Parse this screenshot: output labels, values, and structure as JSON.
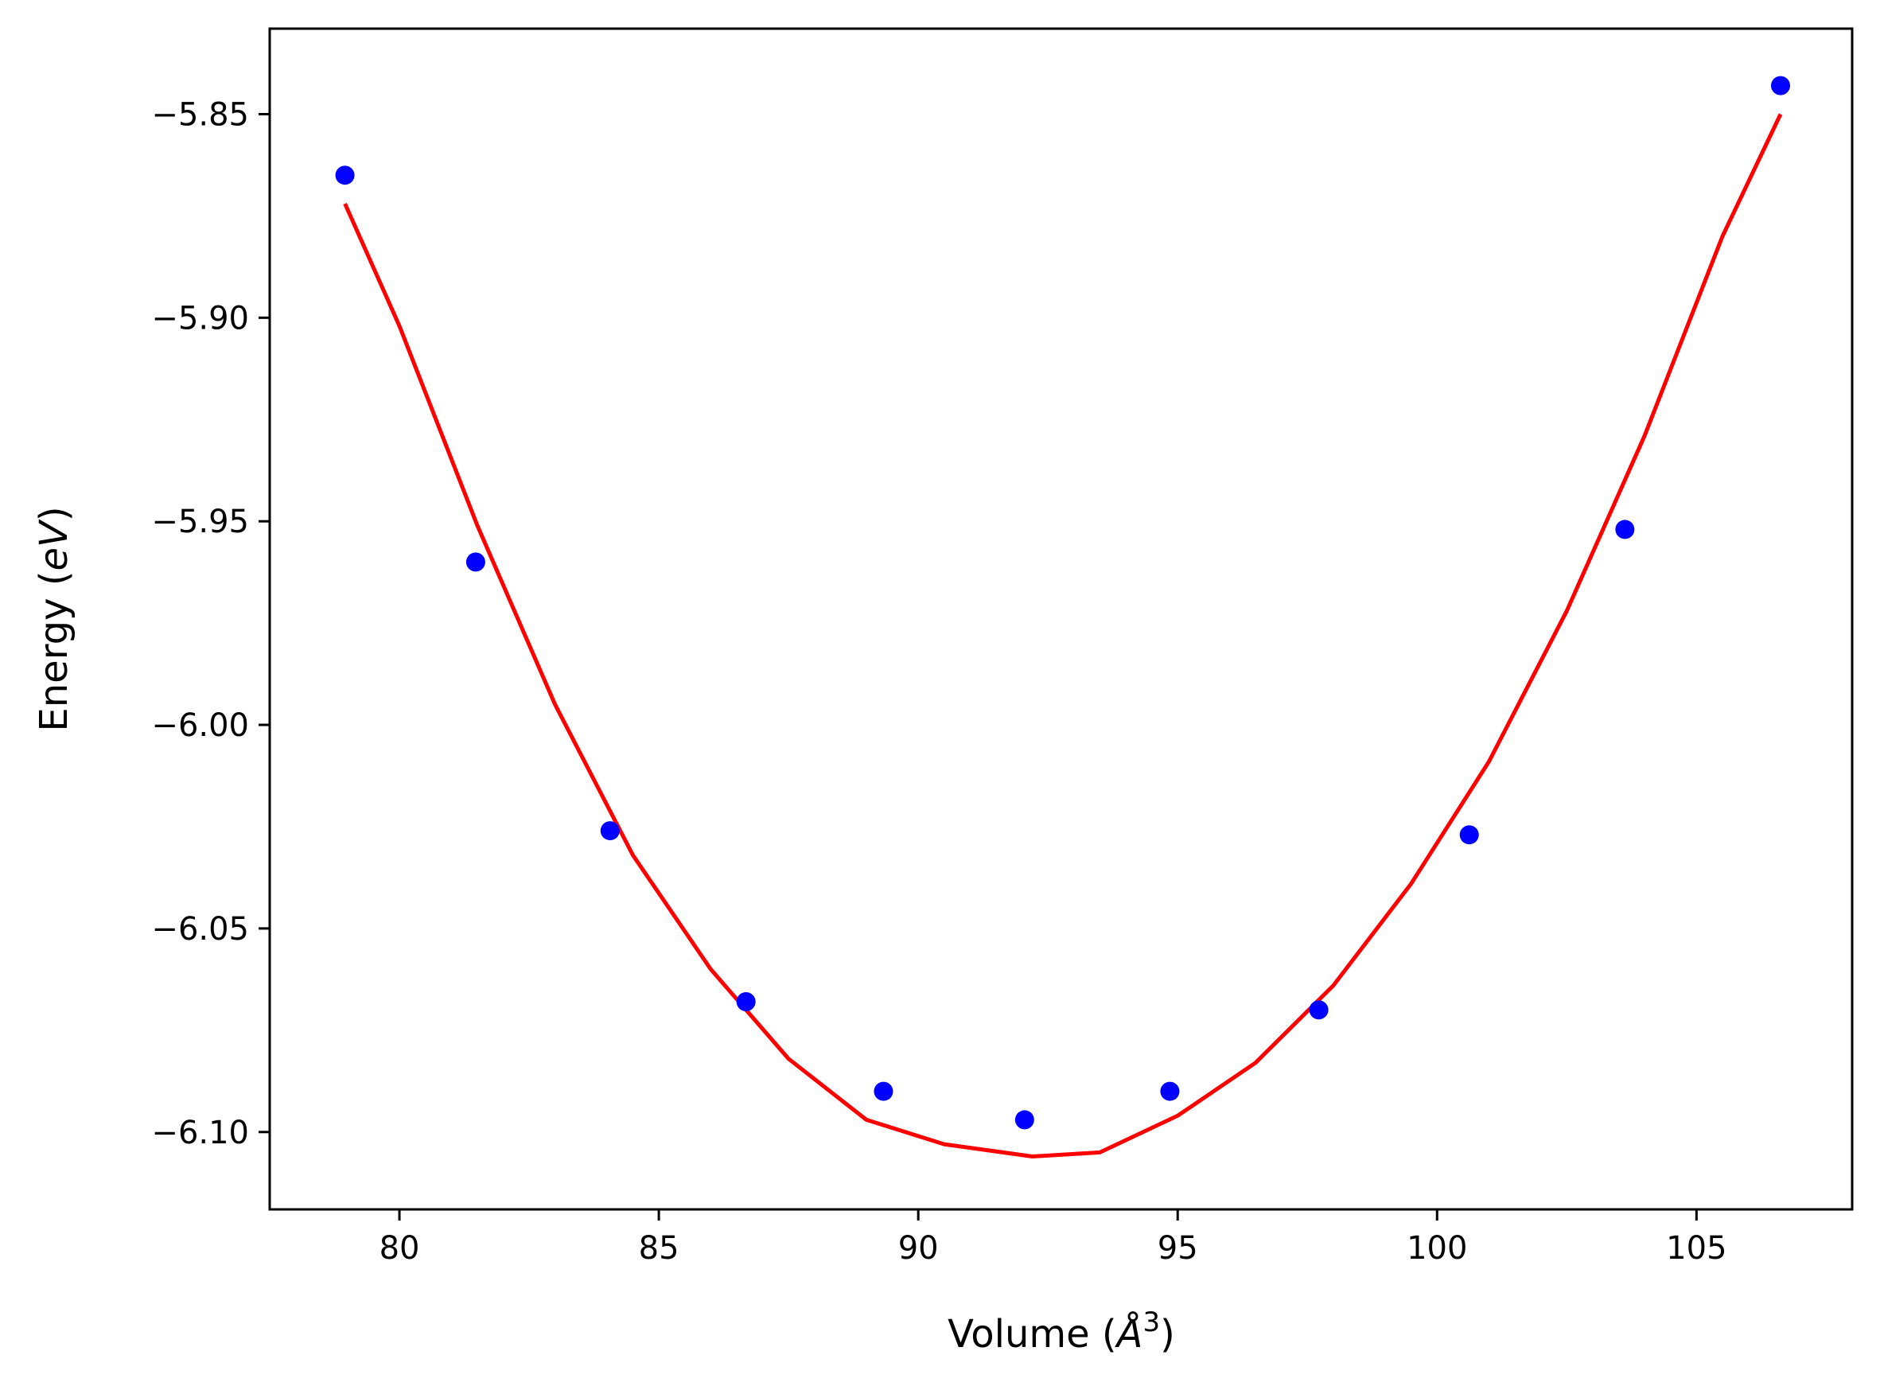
{
  "chart_data": {
    "type": "scatter",
    "title": "",
    "xlabel_parts": [
      "Volume (",
      "Å",
      "3",
      ")"
    ],
    "ylabel_parts": [
      "Energy (",
      "eV",
      ")"
    ],
    "xlim": [
      77.5,
      108.0
    ],
    "ylim": [
      -6.119,
      -5.829
    ],
    "x_ticks": [
      80,
      85,
      90,
      95,
      100,
      105
    ],
    "x_tick_labels": [
      "80",
      "85",
      "90",
      "95",
      "100",
      "105"
    ],
    "y_ticks": [
      -5.85,
      -5.9,
      -5.95,
      -6.0,
      -6.05,
      -6.1
    ],
    "y_tick_labels": [
      "−5.85",
      "−5.90",
      "−5.95",
      "−6.00",
      "−6.05",
      "−6.10"
    ],
    "grid": false,
    "series": [
      {
        "kind": "points",
        "color": "#0000ff",
        "x": [
          78.95,
          81.47,
          84.06,
          86.68,
          89.33,
          92.05,
          94.85,
          97.72,
          100.62,
          103.62,
          106.62
        ],
        "y": [
          -5.865,
          -5.96,
          -6.026,
          -6.068,
          -6.09,
          -6.097,
          -6.09,
          -6.07,
          -6.027,
          -5.952,
          -5.843
        ]
      },
      {
        "kind": "fit-curve",
        "color": "#ff0000",
        "x": [
          78.95,
          80.0,
          81.5,
          83.0,
          84.5,
          86.0,
          87.5,
          89.0,
          90.5,
          92.2,
          93.5,
          95.0,
          96.5,
          98.0,
          99.5,
          101.0,
          102.5,
          104.0,
          105.5,
          106.62
        ],
        "y": [
          -5.872,
          -5.902,
          -5.951,
          -5.995,
          -6.032,
          -6.06,
          -6.082,
          -6.097,
          -6.103,
          -6.106,
          -6.105,
          -6.096,
          -6.083,
          -6.064,
          -6.039,
          -6.009,
          -5.972,
          -5.929,
          -5.88,
          -5.85
        ]
      }
    ]
  }
}
